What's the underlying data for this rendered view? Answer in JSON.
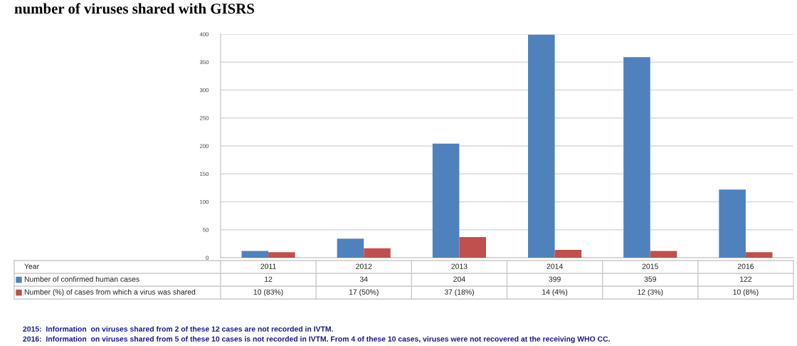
{
  "chart_data": {
    "type": "bar",
    "title": "number of viruses shared with GISRS",
    "categories": [
      "2011",
      "2012",
      "2013",
      "2014",
      "2015",
      "2016"
    ],
    "series": [
      {
        "name": "Number of confirmed human cases",
        "color": "#4f81bd",
        "values": [
          12,
          34,
          204,
          399,
          359,
          122
        ],
        "value_labels": [
          "12",
          "34",
          "204",
          "399",
          "359",
          "122"
        ]
      },
      {
        "name": "Number (%) of cases from which a virus was shared",
        "color": "#c0504d",
        "values": [
          10,
          17,
          37,
          14,
          12,
          10
        ],
        "value_labels": [
          "10 (83%)",
          "17 (50%)",
          "37 (18%)",
          "14 (4%)",
          "12 (3%)",
          "10 (8%)"
        ]
      }
    ],
    "ylim": [
      0,
      400
    ],
    "yticks": [
      0,
      50,
      100,
      150,
      200,
      250,
      300,
      350,
      400
    ],
    "grid": "y",
    "legend": "bottom",
    "annotations": [
      "Year",
      "2015:  Information  on viruses shared from 2 of these 12 cases are not recorded in IVTM.",
      "2016:  Information  on viruses shared from 5 of these 10 cases is not recorded in IVTM. From 4 of these 10 cases, viruses were not recovered at the receiving WHO CC."
    ]
  }
}
